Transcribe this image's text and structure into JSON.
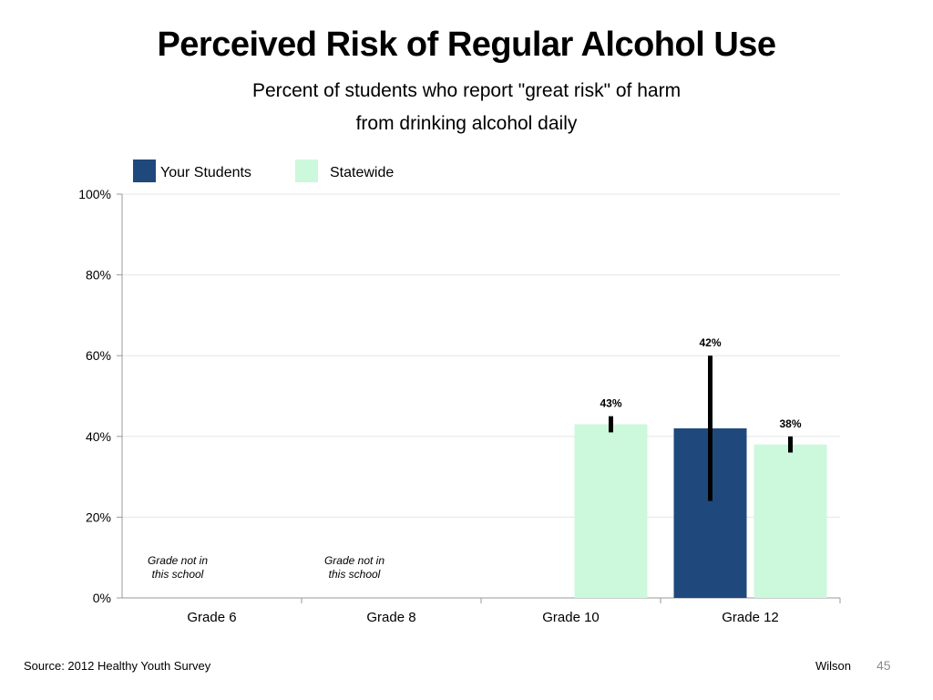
{
  "chart_data": {
    "type": "bar",
    "title": "Perceived Risk of Regular Alcohol Use",
    "subtitle": [
      "Percent of students who report \"great risk\" of harm",
      "from drinking alcohol daily"
    ],
    "categories": [
      "Grade 6",
      "Grade 8",
      "Grade 10",
      "Grade 12"
    ],
    "series": [
      {
        "name": "Your Students",
        "color": "#1f497d",
        "values": [
          null,
          null,
          null,
          42
        ],
        "labels": [
          null,
          null,
          null,
          "42%"
        ],
        "error_low": [
          null,
          null,
          null,
          24
        ],
        "error_high": [
          null,
          null,
          null,
          60
        ]
      },
      {
        "name": "Statewide",
        "color": "#ccf8dc",
        "values": [
          null,
          null,
          43,
          38
        ],
        "labels": [
          null,
          null,
          "43%",
          "38%"
        ],
        "error_low": [
          null,
          null,
          41,
          36
        ],
        "error_high": [
          null,
          null,
          45,
          40
        ]
      }
    ],
    "ylim": [
      0,
      100
    ],
    "yticks": [
      "0%",
      "20%",
      "40%",
      "60%",
      "80%",
      "100%"
    ],
    "ytick_values": [
      0,
      20,
      40,
      60,
      80,
      100
    ],
    "grid": true,
    "legend_position": "top-left",
    "notes": [
      {
        "category": "Grade 6",
        "text": [
          "Grade not in",
          "this school"
        ]
      },
      {
        "category": "Grade 8",
        "text": [
          "Grade not in",
          "this school"
        ]
      }
    ]
  },
  "footer": {
    "source": "Source: 2012 Healthy Youth Survey",
    "author": "Wilson",
    "page": "45"
  }
}
